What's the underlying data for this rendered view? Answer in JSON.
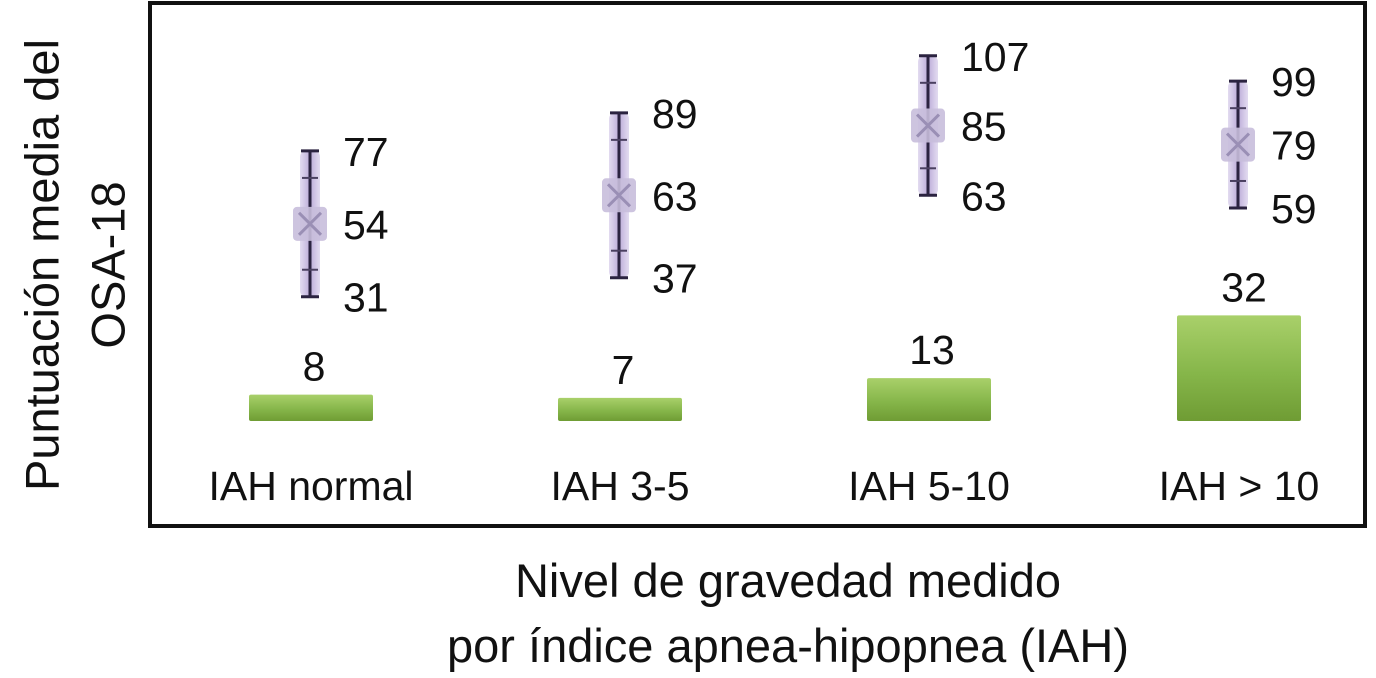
{
  "chart_data": {
    "type": "bar",
    "title": "",
    "xlabel": [
      "Nivel de gravedad medido",
      "por índice apnea-hipopnea (IAH)"
    ],
    "ylabel": [
      "Puntuación media del",
      "OSA-18"
    ],
    "categories": [
      "IAH normal",
      "IAH 3-5",
      "IAH 5-10",
      "IAH > 10"
    ],
    "series": [
      {
        "values": [
          8,
          7,
          13,
          32
        ],
        "color": "#8dbb4c"
      }
    ],
    "ranges": [
      {
        "low": 31,
        "mean": 54,
        "high": 77
      },
      {
        "low": 37,
        "mean": 63,
        "high": 89
      },
      {
        "low": 63,
        "mean": 85,
        "high": 107
      },
      {
        "low": 59,
        "mean": 79,
        "high": 99
      }
    ],
    "range_color": "#b9a8d6",
    "grid": false
  }
}
